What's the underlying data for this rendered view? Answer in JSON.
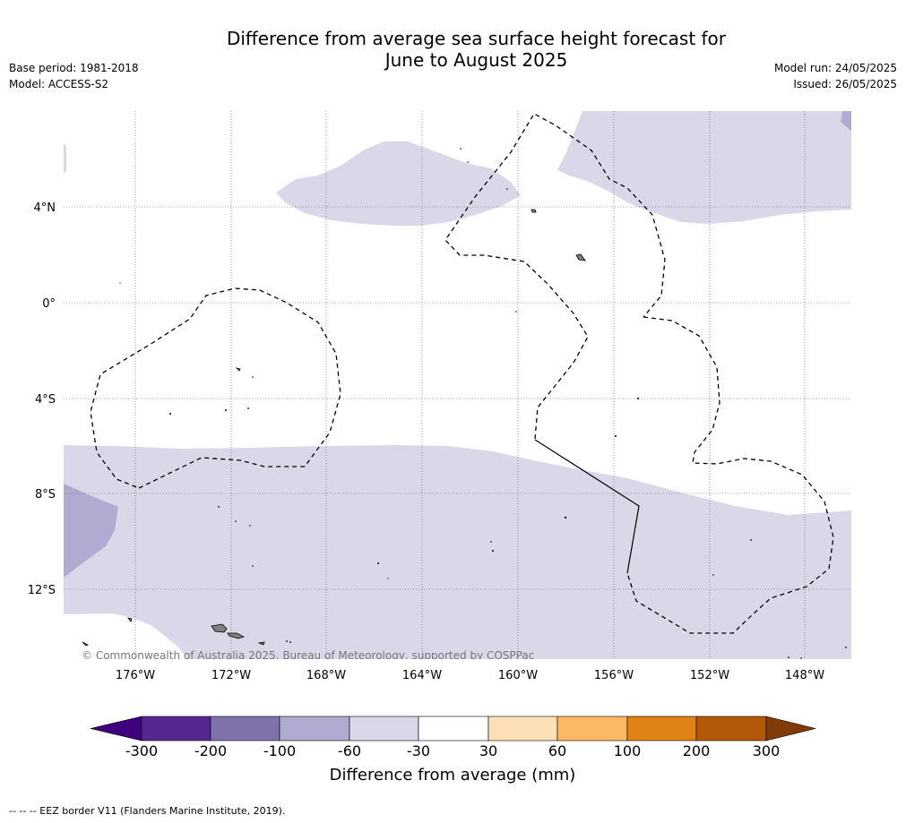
{
  "header": {
    "title_line1": "Difference from average sea surface height forecast for",
    "title_line2": "June to August 2025",
    "base_period": "Base period: 1981-2018",
    "model": "Model: ACCESS-S2",
    "model_run": "Model run: 24/05/2025",
    "issued": "Issued: 26/05/2025"
  },
  "map": {
    "lat_labels": [
      "4°N",
      "0°",
      "4°S",
      "8°S",
      "12°S"
    ],
    "lon_labels": [
      "176°W",
      "172°W",
      "168°W",
      "164°W",
      "160°W",
      "156°W",
      "152°W",
      "148°W"
    ],
    "copyright": "© Commonwealth of Australia 2025, Bureau of Meteorology, supported by COSPPac",
    "colors": {
      "light_purple": "#d8d8e9",
      "mid_purple": "#b1abd2",
      "land": "#808080"
    }
  },
  "colorbar": {
    "label": "Difference from average (mm)",
    "ticks": [
      "-300",
      "-200",
      "-100",
      "-60",
      "-30",
      "30",
      "60",
      "100",
      "200",
      "300"
    ],
    "colors": [
      "#3f007d",
      "#54278f",
      "#8073ac",
      "#b1abd2",
      "#d8d8e9",
      "#ffffff",
      "#fee0b6",
      "#fdb863",
      "#e08214",
      "#b35806",
      "#7f3b08"
    ]
  },
  "footer": {
    "legend_text": "--  --  -- EEZ border V11 (Flanders Marine Institute, 2019)."
  }
}
